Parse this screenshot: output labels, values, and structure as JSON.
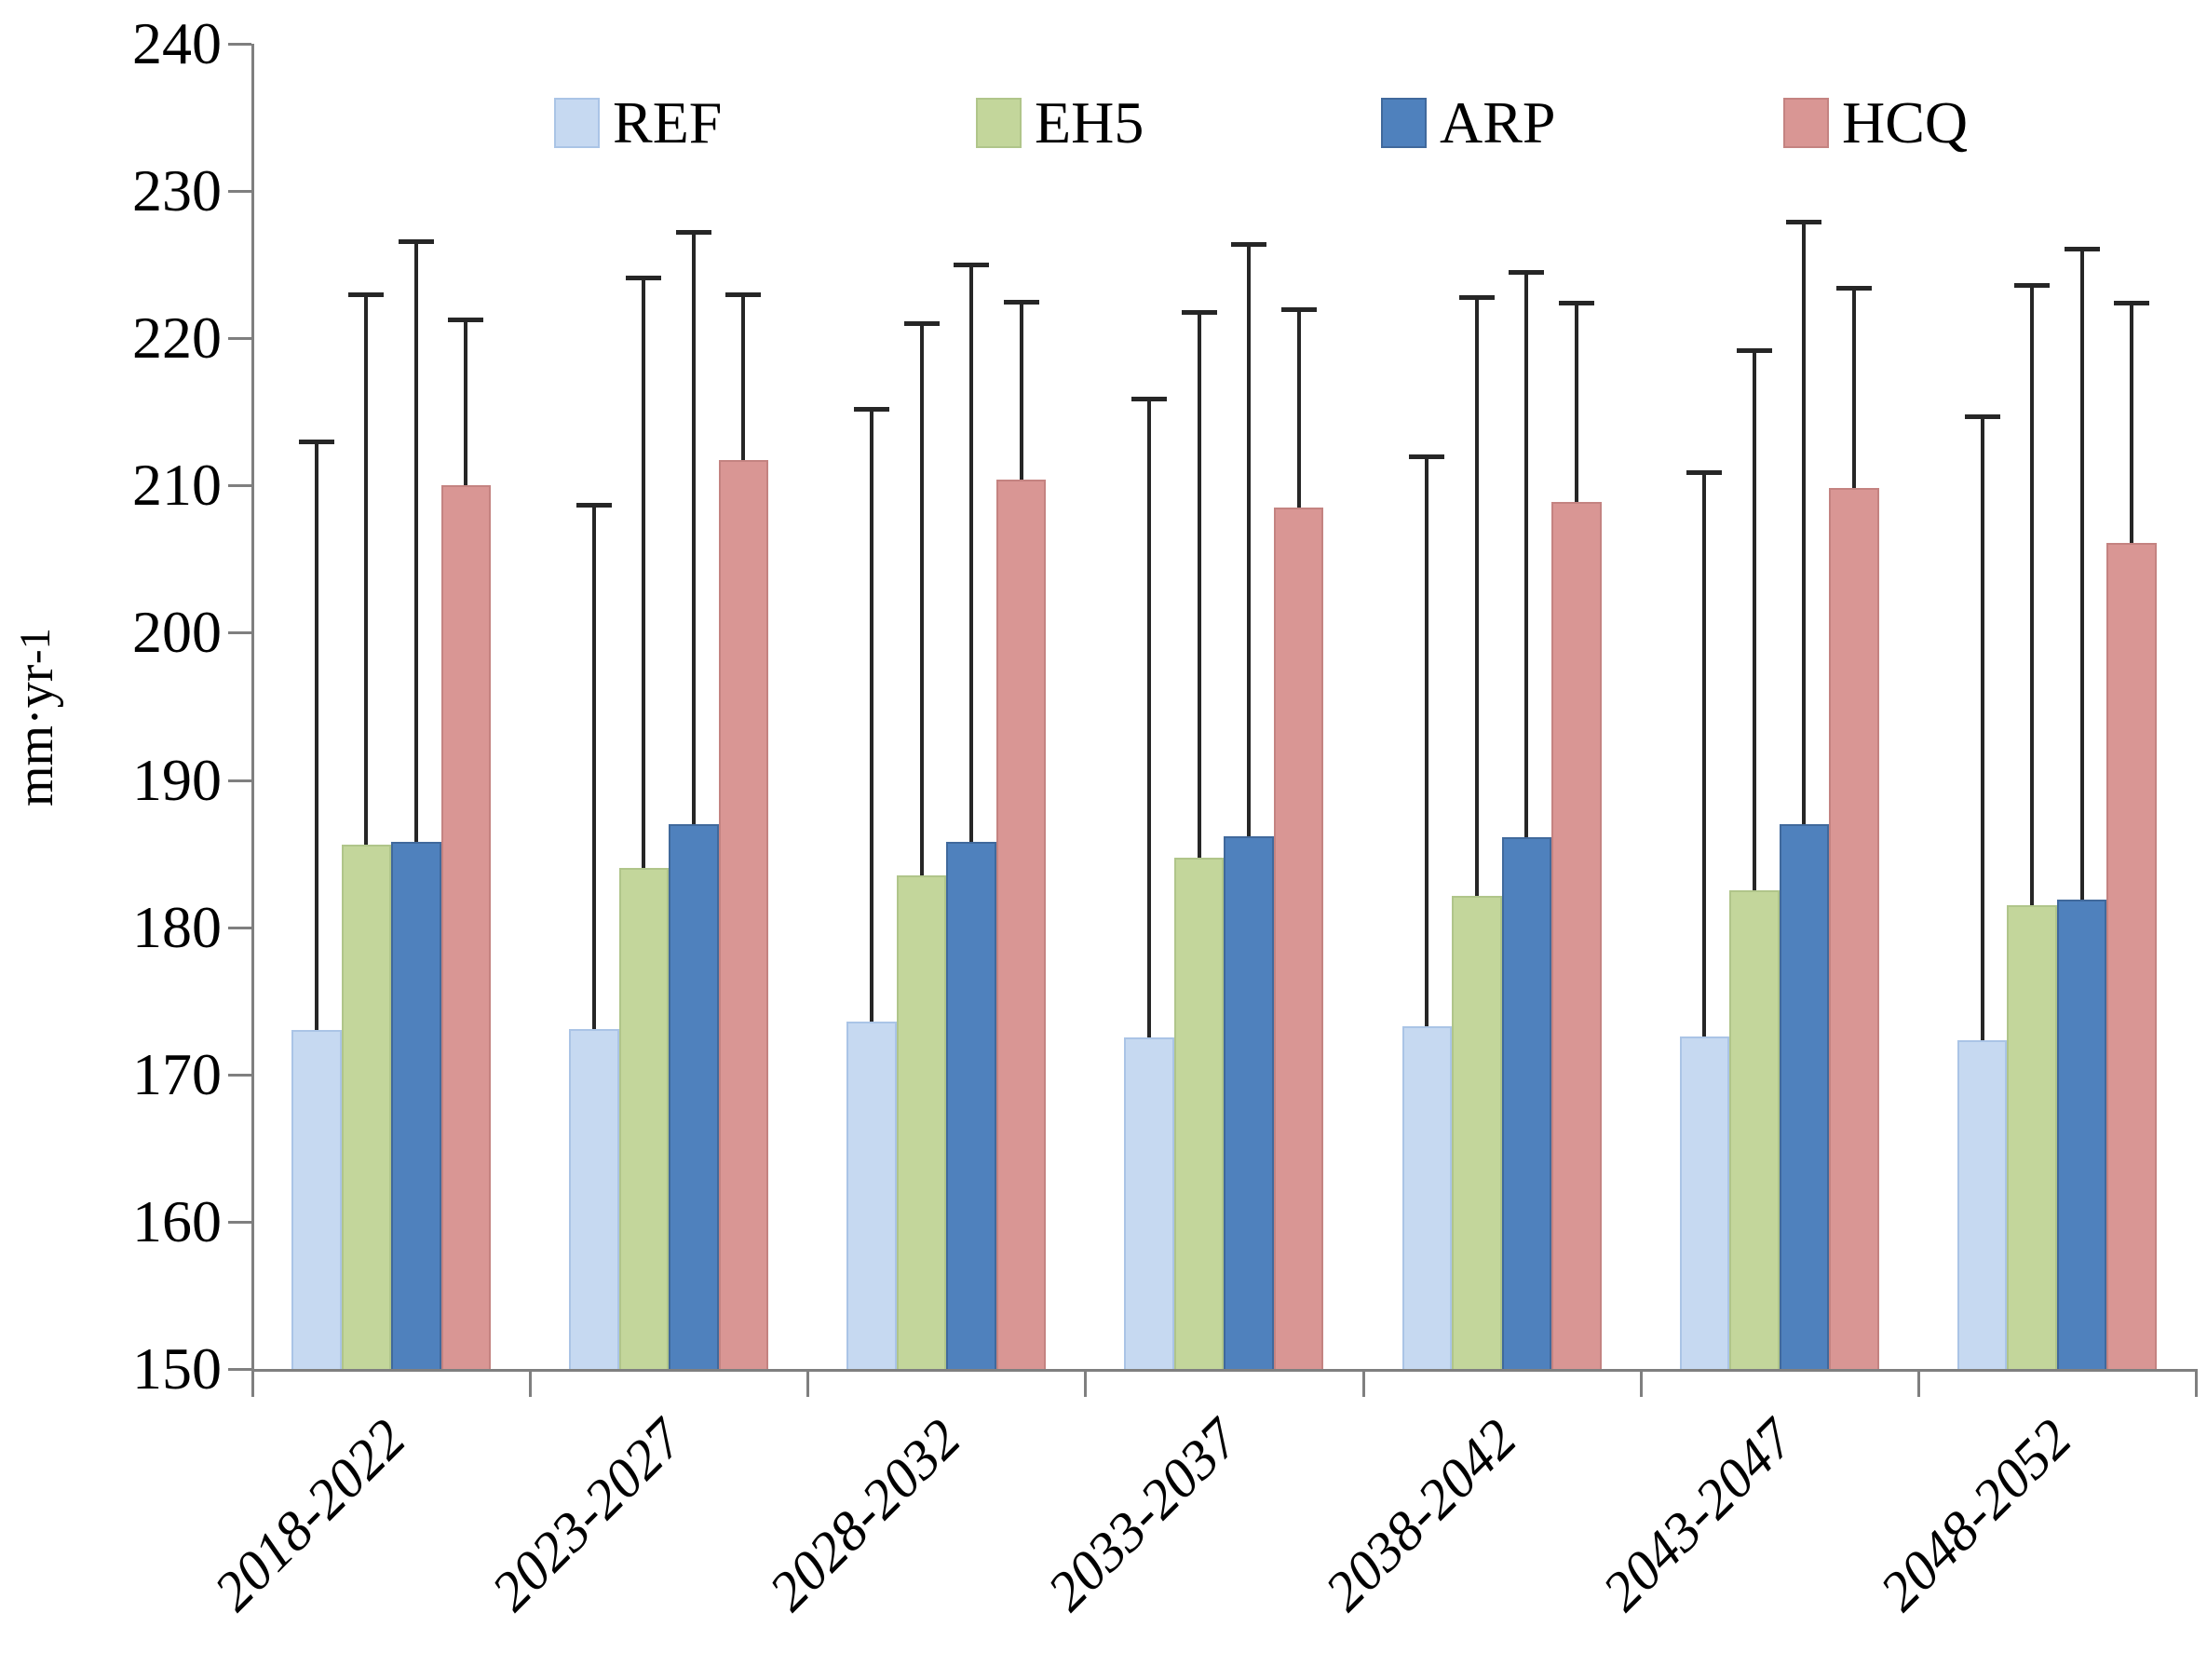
{
  "chart_data": {
    "type": "bar",
    "title": "",
    "ylabel": "mm·yr⁻¹",
    "ylabel_base": "mm·yr",
    "ylabel_sup": "-1",
    "ylim": [
      150,
      240
    ],
    "yticks": [
      150,
      160,
      170,
      180,
      190,
      200,
      210,
      220,
      230,
      240
    ],
    "grid": false,
    "legend_position": "top",
    "categories": [
      "2018-2022",
      "2023-2027",
      "2028-2032",
      "2033-2037",
      "2038-2042",
      "2043-2047",
      "2048-2052"
    ],
    "series": [
      {
        "name": "REF",
        "color": "#c6d9f1",
        "border_color": "#aac4e6",
        "values": [
          173.0,
          173.1,
          173.6,
          172.5,
          173.3,
          172.6,
          172.3
        ],
        "upper_whisker": [
          213.0,
          208.7,
          215.2,
          215.9,
          212.0,
          210.9,
          214.7
        ]
      },
      {
        "name": "EH5",
        "color": "#c3d69b",
        "border_color": "#b0c58a",
        "values": [
          185.6,
          184.0,
          183.5,
          184.7,
          182.1,
          182.5,
          181.5
        ],
        "upper_whisker": [
          223.0,
          224.1,
          221.0,
          221.8,
          222.8,
          219.2,
          223.6
        ]
      },
      {
        "name": "ARP",
        "color": "#4f81bd",
        "border_color": "#40699c",
        "values": [
          185.8,
          187.0,
          185.8,
          186.2,
          186.1,
          187.0,
          181.9
        ],
        "upper_whisker": [
          226.6,
          227.2,
          225.0,
          226.4,
          224.5,
          227.9,
          226.1
        ]
      },
      {
        "name": "HCQ",
        "color": "#d99694",
        "border_color": "#c48381",
        "values": [
          210.0,
          211.7,
          210.4,
          208.5,
          208.9,
          209.8,
          206.1
        ],
        "upper_whisker": [
          221.3,
          223.0,
          222.5,
          222.0,
          222.4,
          223.4,
          222.4
        ]
      }
    ],
    "error_bar_color": "#262626",
    "axis_color": "#7f7f7f",
    "text_color": "#000000"
  }
}
